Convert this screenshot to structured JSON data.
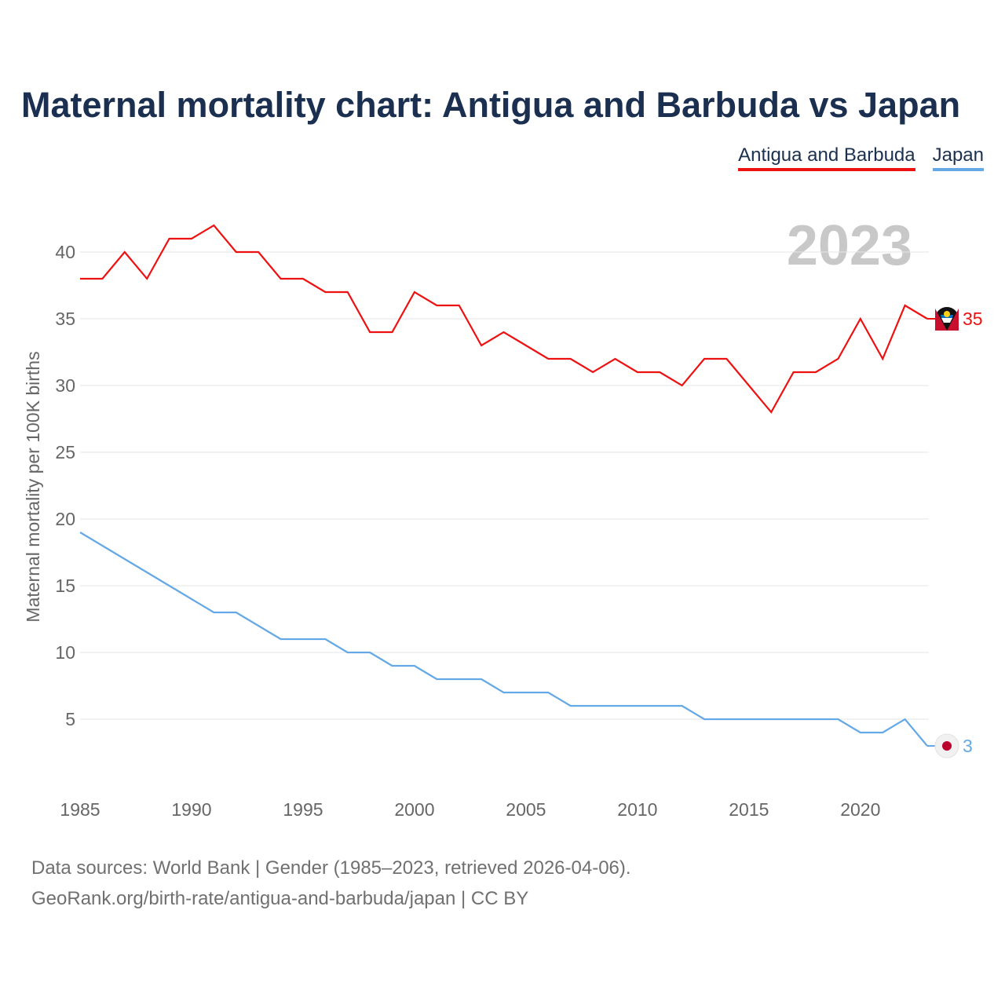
{
  "title": "Maternal mortality chart: Antigua and Barbuda vs Japan",
  "legend": [
    {
      "label": "Antigua and Barbuda",
      "color": "#ee1111"
    },
    {
      "label": "Japan",
      "color": "#64a8e6"
    }
  ],
  "year_label": "2023",
  "source": {
    "line1": "Data sources: World Bank | Gender (1985–2023, retrieved 2026-04-06).",
    "line2": "GeoRank.org/birth-rate/antigua-and-barbuda/japan | CC BY"
  },
  "chart_data": {
    "type": "line",
    "title": "Maternal mortality chart: Antigua and Barbuda vs Japan",
    "xlabel": "",
    "ylabel": "Maternal mortality per 100K births",
    "xlim": [
      1985,
      2023
    ],
    "ylim": [
      0,
      42
    ],
    "x_ticks": [
      "1985",
      "1990",
      "1995",
      "2000",
      "2005",
      "2010",
      "2015",
      "2020"
    ],
    "y_ticks": [
      "5",
      "10",
      "15",
      "20",
      "25",
      "30",
      "35",
      "40"
    ],
    "x": [
      1985,
      1986,
      1987,
      1988,
      1989,
      1990,
      1991,
      1992,
      1993,
      1994,
      1995,
      1996,
      1997,
      1998,
      1999,
      2000,
      2001,
      2002,
      2003,
      2004,
      2005,
      2006,
      2007,
      2008,
      2009,
      2010,
      2011,
      2012,
      2013,
      2014,
      2015,
      2016,
      2017,
      2018,
      2019,
      2020,
      2021,
      2022,
      2023
    ],
    "series": [
      {
        "name": "Antigua and Barbuda",
        "color": "#ee1111",
        "end_label": "35",
        "values": [
          38,
          38,
          40,
          38,
          41,
          41,
          42,
          40,
          40,
          38,
          38,
          37,
          37,
          34,
          34,
          37,
          36,
          36,
          33,
          34,
          33,
          32,
          32,
          31,
          32,
          31,
          31,
          30,
          32,
          32,
          30,
          28,
          31,
          31,
          32,
          35,
          32,
          36,
          35
        ]
      },
      {
        "name": "Japan",
        "color": "#64a8e6",
        "end_label": "3",
        "values": [
          19,
          18,
          17,
          16,
          15,
          14,
          13,
          13,
          12,
          11,
          11,
          11,
          10,
          10,
          9,
          9,
          8,
          8,
          8,
          7,
          7,
          7,
          6,
          6,
          6,
          6,
          6,
          6,
          5,
          5,
          5,
          5,
          5,
          5,
          5,
          4,
          4,
          5,
          3
        ]
      }
    ],
    "grid": true
  }
}
